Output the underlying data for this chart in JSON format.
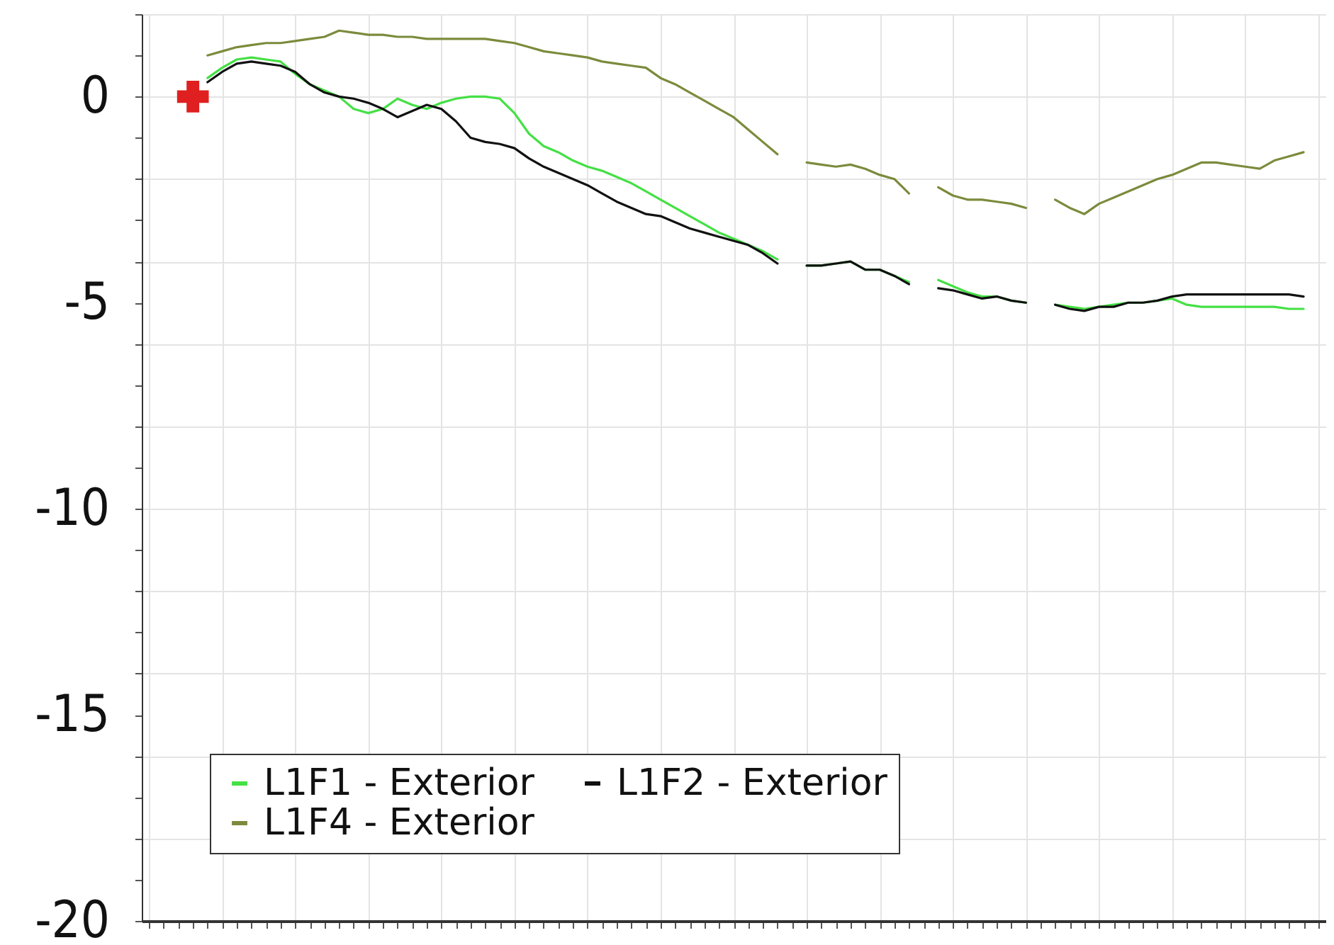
{
  "chart_data": {
    "type": "line",
    "categories": [
      null,
      null,
      null,
      null,
      null,
      null,
      null,
      null,
      null,
      null,
      null,
      null,
      null,
      null,
      null,
      null,
      null,
      null,
      null,
      null,
      null,
      null,
      null,
      null,
      null,
      null,
      null,
      null,
      null,
      null,
      null,
      null,
      null,
      null,
      null,
      null,
      null,
      null,
      null,
      null,
      null,
      null,
      null,
      null,
      null,
      null,
      null,
      null,
      null,
      null,
      null,
      null,
      null,
      null,
      null,
      null,
      null,
      null,
      null,
      null,
      null,
      null,
      null,
      null,
      null,
      null,
      null,
      null,
      null,
      null,
      null,
      null,
      null,
      null,
      null,
      null,
      null,
      null,
      null,
      null,
      null
    ],
    "series": [
      {
        "name": "L1F1 - Exterior",
        "color": "#44e044",
        "values": [
          null,
          null,
          null,
          null,
          0.45,
          0.7,
          0.9,
          0.95,
          0.9,
          0.85,
          0.55,
          0.3,
          0.15,
          0.0,
          -0.3,
          -0.4,
          -0.3,
          -0.05,
          -0.2,
          -0.3,
          -0.15,
          -0.05,
          0.0,
          0.0,
          -0.05,
          -0.4,
          -0.9,
          -1.2,
          -1.35,
          -1.55,
          -1.7,
          -1.8,
          -1.95,
          -2.1,
          -2.3,
          -2.5,
          -2.7,
          -2.9,
          -3.1,
          -3.3,
          -3.45,
          -3.6,
          -3.75,
          -3.95,
          null,
          -4.1,
          -4.1,
          -4.05,
          -4.0,
          -4.2,
          -4.2,
          -4.35,
          -4.5,
          null,
          -4.45,
          -4.6,
          -4.75,
          -4.85,
          -4.85,
          -4.95,
          -5.0,
          null,
          -5.05,
          -5.1,
          -5.15,
          -5.1,
          -5.05,
          -5.0,
          -5.0,
          -4.95,
          -4.9,
          -5.05,
          -5.1,
          -5.1,
          -5.1,
          -5.1,
          -5.1,
          -5.1,
          -5.15,
          -5.15,
          null
        ]
      },
      {
        "name": "L1F2 - Exterior",
        "color": "#111111",
        "values": [
          null,
          null,
          null,
          null,
          0.35,
          0.6,
          0.8,
          0.85,
          0.8,
          0.75,
          0.6,
          0.3,
          0.1,
          0.0,
          -0.05,
          -0.15,
          -0.3,
          -0.5,
          -0.35,
          -0.2,
          -0.3,
          -0.6,
          -1.0,
          -1.1,
          -1.15,
          -1.25,
          -1.5,
          -1.7,
          -1.85,
          -2.0,
          -2.15,
          -2.35,
          -2.55,
          -2.7,
          -2.85,
          -2.9,
          -3.05,
          -3.2,
          -3.3,
          -3.4,
          -3.5,
          -3.6,
          -3.8,
          -4.05,
          null,
          -4.1,
          -4.1,
          -4.05,
          -4.0,
          -4.2,
          -4.2,
          -4.35,
          -4.55,
          null,
          -4.65,
          -4.7,
          -4.8,
          -4.9,
          -4.85,
          -4.95,
          -5.0,
          null,
          -5.05,
          -5.15,
          -5.2,
          -5.1,
          -5.1,
          -5.0,
          -5.0,
          -4.95,
          -4.85,
          -4.8,
          -4.8,
          -4.8,
          -4.8,
          -4.8,
          -4.8,
          -4.8,
          -4.8,
          -4.85,
          null
        ]
      },
      {
        "name": "L1F4 - Exterior",
        "color": "#7b8b3c",
        "values": [
          null,
          null,
          null,
          null,
          1.0,
          1.1,
          1.2,
          1.25,
          1.3,
          1.3,
          1.35,
          1.4,
          1.45,
          1.6,
          1.55,
          1.5,
          1.5,
          1.45,
          1.45,
          1.4,
          1.4,
          1.4,
          1.4,
          1.4,
          1.35,
          1.3,
          1.2,
          1.1,
          1.05,
          1.0,
          0.95,
          0.85,
          0.8,
          0.75,
          0.7,
          0.45,
          0.3,
          0.1,
          -0.1,
          -0.3,
          -0.5,
          -0.8,
          -1.1,
          -1.4,
          null,
          -1.6,
          -1.65,
          -1.7,
          -1.65,
          -1.75,
          -1.9,
          -2.0,
          -2.35,
          null,
          -2.2,
          -2.4,
          -2.5,
          -2.5,
          -2.55,
          -2.6,
          -2.7,
          null,
          -2.5,
          -2.7,
          -2.85,
          -2.6,
          -2.45,
          -2.3,
          -2.15,
          -2.0,
          -1.9,
          -1.75,
          -1.6,
          -1.6,
          -1.65,
          -1.7,
          -1.75,
          -1.55,
          -1.45,
          -1.35,
          null
        ]
      },
      {
        "type": "scatter",
        "marker": "cross",
        "color": "#e02020",
        "values": [
          null,
          null,
          null,
          0,
          null,
          null,
          null,
          null,
          null,
          null,
          null,
          null,
          null,
          null,
          null,
          null,
          null,
          null,
          null,
          null,
          null,
          null,
          null,
          null,
          null,
          null,
          null,
          null,
          null,
          null,
          null,
          null,
          null,
          null,
          null,
          null,
          null,
          null,
          null,
          null,
          null,
          null,
          null,
          null,
          null,
          null,
          null,
          null,
          null,
          null,
          null,
          null,
          null,
          null,
          null,
          null,
          null,
          null,
          null,
          null,
          null,
          null,
          null,
          null,
          null,
          null,
          null,
          null,
          null,
          null,
          null,
          null,
          null,
          null,
          null,
          null,
          null,
          null,
          null,
          null,
          null
        ]
      }
    ],
    "ylim": [
      -20,
      2
    ],
    "yticks": [
      -20,
      {
        "value": -19,
        "label": null
      },
      {
        "value": -18,
        "label": null
      },
      {
        "value": -17,
        "label": null
      },
      {
        "value": -16,
        "label": null
      },
      -15,
      {
        "value": -14,
        "label": null
      },
      {
        "value": -13,
        "label": null
      },
      {
        "value": -12,
        "label": null
      },
      {
        "value": -11,
        "label": null
      },
      -10,
      {
        "value": -9,
        "label": null
      },
      {
        "value": -8,
        "label": null
      },
      {
        "value": -7,
        "label": null
      },
      {
        "value": -6,
        "label": null
      },
      -5,
      {
        "value": -4,
        "label": null
      },
      {
        "value": -3,
        "label": null
      },
      {
        "value": -2,
        "label": null
      },
      {
        "value": -1,
        "label": null
      },
      0,
      {
        "value": 1,
        "label": null
      },
      {
        "value": 2,
        "label": null
      }
    ],
    "tick_labels": "y",
    "grid": true,
    "legend": "bottom left",
    "line_style": "solid"
  }
}
